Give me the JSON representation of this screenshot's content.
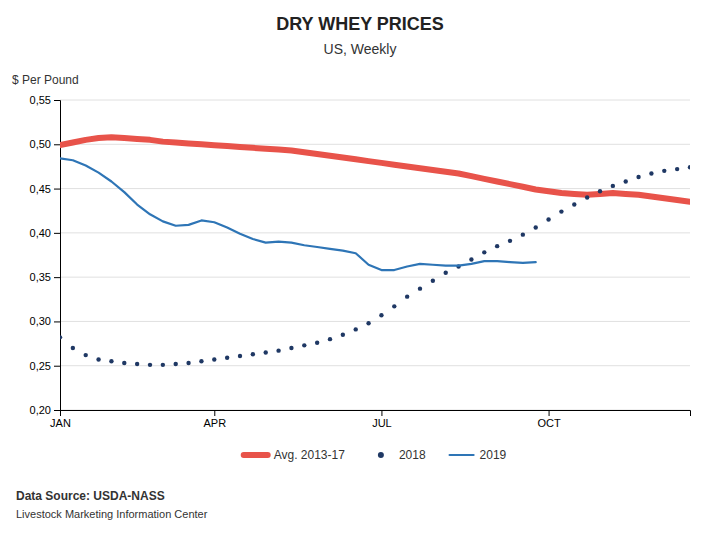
{
  "chart_data": {
    "type": "line",
    "title": "DRY WHEY PRICES",
    "subtitle": "US, Weekly",
    "y_label": "$ Per Pound",
    "annotations": [
      "Data Source:  USDA-NASS",
      "Livestock Marketing Information Center"
    ],
    "categories": [
      "JAN",
      null,
      null,
      null,
      null,
      null,
      null,
      null,
      null,
      null,
      null,
      null,
      "APR",
      null,
      null,
      null,
      null,
      null,
      null,
      null,
      null,
      null,
      null,
      null,
      null,
      "JUL",
      null,
      null,
      null,
      null,
      null,
      null,
      null,
      null,
      null,
      null,
      null,
      null,
      "OCT",
      null,
      null,
      null,
      null,
      null,
      null,
      null,
      null,
      null,
      null,
      null
    ],
    "series": [
      {
        "name": "Avg. 2013-17",
        "color": "#E8534A",
        "line_style": "solid",
        "values": [
          0.499,
          0.502,
          0.505,
          0.507,
          0.508,
          0.507,
          0.506,
          0.505,
          0.503,
          0.502,
          0.501,
          0.5,
          0.499,
          0.498,
          0.497,
          0.496,
          0.495,
          0.494,
          0.493,
          0.491,
          0.489,
          0.487,
          0.485,
          0.483,
          0.481,
          0.479,
          0.477,
          0.475,
          0.473,
          0.471,
          0.469,
          0.467,
          0.464,
          0.461,
          0.458,
          0.455,
          0.452,
          0.449,
          0.447,
          0.445,
          0.444,
          0.443,
          0.444,
          0.445,
          0.444,
          0.443,
          0.441,
          0.439,
          0.437,
          0.435
        ]
      },
      {
        "name": "2018",
        "color": "#1F3864",
        "line_style": "none",
        "marker": "dot",
        "values": [
          0.282,
          0.27,
          0.262,
          0.257,
          0.255,
          0.253,
          0.252,
          0.251,
          0.251,
          0.252,
          0.253,
          0.255,
          0.257,
          0.259,
          0.261,
          0.263,
          0.265,
          0.267,
          0.27,
          0.273,
          0.276,
          0.28,
          0.285,
          0.291,
          0.298,
          0.307,
          0.317,
          0.328,
          0.337,
          0.346,
          0.355,
          0.362,
          0.37,
          0.378,
          0.385,
          0.391,
          0.398,
          0.406,
          0.415,
          0.424,
          0.432,
          0.44,
          0.447,
          0.453,
          0.458,
          0.463,
          0.467,
          0.47,
          0.472,
          0.474
        ]
      },
      {
        "name": "2019",
        "color": "#2E75B6",
        "line_style": "solid",
        "values": [
          0.484,
          0.482,
          0.476,
          0.468,
          0.458,
          0.446,
          0.432,
          0.421,
          0.413,
          0.408,
          0.409,
          0.414,
          0.412,
          0.406,
          0.399,
          0.393,
          0.389,
          0.39,
          0.389,
          0.386,
          0.384,
          0.382,
          0.38,
          0.377,
          0.364,
          0.358,
          0.358,
          0.362,
          0.365,
          0.364,
          0.363,
          0.363,
          0.365,
          0.368,
          0.368,
          0.367,
          0.366,
          0.367,
          null,
          null,
          null,
          null,
          null,
          null,
          null,
          null,
          null,
          null,
          null,
          null
        ]
      }
    ],
    "ylim": [
      0.2,
      0.55
    ],
    "yticks": [
      {
        "value": 0.2,
        "label": "0,20"
      },
      {
        "value": 0.25,
        "label": "0,25"
      },
      {
        "value": 0.3,
        "label": "0,30"
      },
      {
        "value": 0.35,
        "label": "0,35"
      },
      {
        "value": 0.4,
        "label": "0,40"
      },
      {
        "value": 0.45,
        "label": "0,45"
      },
      {
        "value": 0.5,
        "label": "0,50"
      },
      {
        "value": 0.55,
        "label": "0,55"
      }
    ],
    "grid": true,
    "legend": "bottom"
  }
}
